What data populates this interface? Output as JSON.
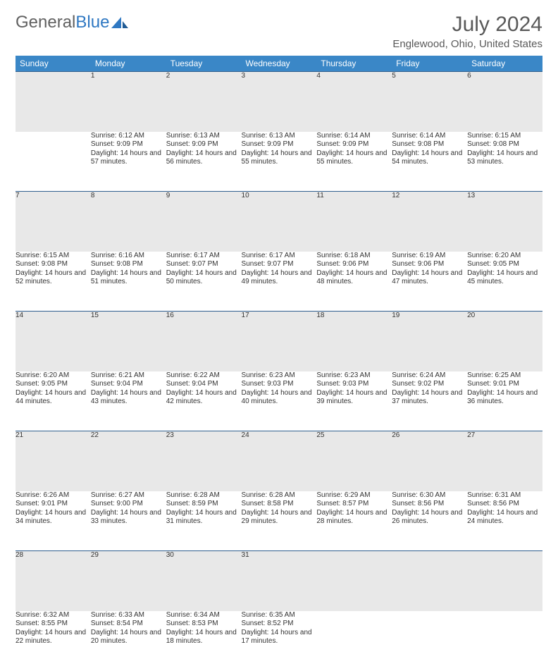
{
  "logo": {
    "text1": "General",
    "text2": "Blue"
  },
  "title": "July 2024",
  "location": "Englewood, Ohio, United States",
  "colors": {
    "header_bg": "#3a87c7",
    "header_text": "#ffffff",
    "daynum_bg": "#e8e8e8",
    "row_border": "#2f5e8e",
    "body_text": "#333333",
    "title_text": "#595959",
    "logo_gray": "#616161",
    "logo_blue": "#2f78c2"
  },
  "weekdays": [
    "Sunday",
    "Monday",
    "Tuesday",
    "Wednesday",
    "Thursday",
    "Friday",
    "Saturday"
  ],
  "weeks": [
    [
      null,
      {
        "n": "1",
        "sr": "6:12 AM",
        "ss": "9:09 PM",
        "dl": "14 hours and 57 minutes."
      },
      {
        "n": "2",
        "sr": "6:13 AM",
        "ss": "9:09 PM",
        "dl": "14 hours and 56 minutes."
      },
      {
        "n": "3",
        "sr": "6:13 AM",
        "ss": "9:09 PM",
        "dl": "14 hours and 55 minutes."
      },
      {
        "n": "4",
        "sr": "6:14 AM",
        "ss": "9:09 PM",
        "dl": "14 hours and 55 minutes."
      },
      {
        "n": "5",
        "sr": "6:14 AM",
        "ss": "9:08 PM",
        "dl": "14 hours and 54 minutes."
      },
      {
        "n": "6",
        "sr": "6:15 AM",
        "ss": "9:08 PM",
        "dl": "14 hours and 53 minutes."
      }
    ],
    [
      {
        "n": "7",
        "sr": "6:15 AM",
        "ss": "9:08 PM",
        "dl": "14 hours and 52 minutes."
      },
      {
        "n": "8",
        "sr": "6:16 AM",
        "ss": "9:08 PM",
        "dl": "14 hours and 51 minutes."
      },
      {
        "n": "9",
        "sr": "6:17 AM",
        "ss": "9:07 PM",
        "dl": "14 hours and 50 minutes."
      },
      {
        "n": "10",
        "sr": "6:17 AM",
        "ss": "9:07 PM",
        "dl": "14 hours and 49 minutes."
      },
      {
        "n": "11",
        "sr": "6:18 AM",
        "ss": "9:06 PM",
        "dl": "14 hours and 48 minutes."
      },
      {
        "n": "12",
        "sr": "6:19 AM",
        "ss": "9:06 PM",
        "dl": "14 hours and 47 minutes."
      },
      {
        "n": "13",
        "sr": "6:20 AM",
        "ss": "9:05 PM",
        "dl": "14 hours and 45 minutes."
      }
    ],
    [
      {
        "n": "14",
        "sr": "6:20 AM",
        "ss": "9:05 PM",
        "dl": "14 hours and 44 minutes."
      },
      {
        "n": "15",
        "sr": "6:21 AM",
        "ss": "9:04 PM",
        "dl": "14 hours and 43 minutes."
      },
      {
        "n": "16",
        "sr": "6:22 AM",
        "ss": "9:04 PM",
        "dl": "14 hours and 42 minutes."
      },
      {
        "n": "17",
        "sr": "6:23 AM",
        "ss": "9:03 PM",
        "dl": "14 hours and 40 minutes."
      },
      {
        "n": "18",
        "sr": "6:23 AM",
        "ss": "9:03 PM",
        "dl": "14 hours and 39 minutes."
      },
      {
        "n": "19",
        "sr": "6:24 AM",
        "ss": "9:02 PM",
        "dl": "14 hours and 37 minutes."
      },
      {
        "n": "20",
        "sr": "6:25 AM",
        "ss": "9:01 PM",
        "dl": "14 hours and 36 minutes."
      }
    ],
    [
      {
        "n": "21",
        "sr": "6:26 AM",
        "ss": "9:01 PM",
        "dl": "14 hours and 34 minutes."
      },
      {
        "n": "22",
        "sr": "6:27 AM",
        "ss": "9:00 PM",
        "dl": "14 hours and 33 minutes."
      },
      {
        "n": "23",
        "sr": "6:28 AM",
        "ss": "8:59 PM",
        "dl": "14 hours and 31 minutes."
      },
      {
        "n": "24",
        "sr": "6:28 AM",
        "ss": "8:58 PM",
        "dl": "14 hours and 29 minutes."
      },
      {
        "n": "25",
        "sr": "6:29 AM",
        "ss": "8:57 PM",
        "dl": "14 hours and 28 minutes."
      },
      {
        "n": "26",
        "sr": "6:30 AM",
        "ss": "8:56 PM",
        "dl": "14 hours and 26 minutes."
      },
      {
        "n": "27",
        "sr": "6:31 AM",
        "ss": "8:56 PM",
        "dl": "14 hours and 24 minutes."
      }
    ],
    [
      {
        "n": "28",
        "sr": "6:32 AM",
        "ss": "8:55 PM",
        "dl": "14 hours and 22 minutes."
      },
      {
        "n": "29",
        "sr": "6:33 AM",
        "ss": "8:54 PM",
        "dl": "14 hours and 20 minutes."
      },
      {
        "n": "30",
        "sr": "6:34 AM",
        "ss": "8:53 PM",
        "dl": "14 hours and 18 minutes."
      },
      {
        "n": "31",
        "sr": "6:35 AM",
        "ss": "8:52 PM",
        "dl": "14 hours and 17 minutes."
      },
      null,
      null,
      null
    ]
  ],
  "labels": {
    "sunrise": "Sunrise:",
    "sunset": "Sunset:",
    "daylight": "Daylight:"
  }
}
